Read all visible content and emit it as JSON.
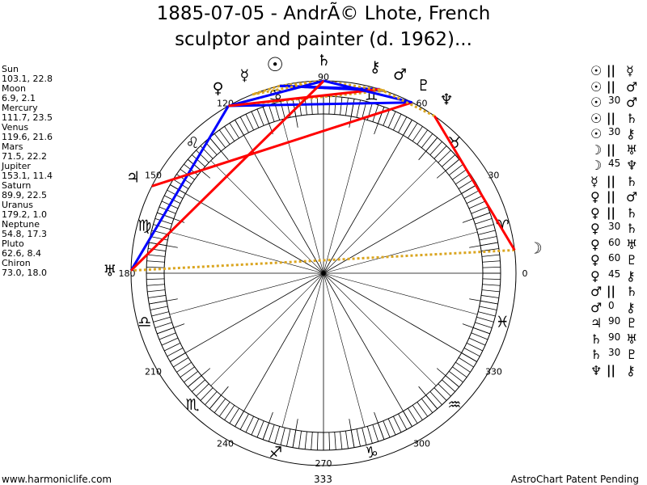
{
  "title_line1": "1885-07-05 - AndrÃ© Lhote, French",
  "title_line2": "sculptor and painter (d. 1962)...",
  "planets": [
    {
      "name": "Sun",
      "glyph": "☉",
      "coords": "103.1, 22.8"
    },
    {
      "name": "Moon",
      "glyph": "☽",
      "coords": "6.9, 2.1"
    },
    {
      "name": "Mercury",
      "glyph": "☿",
      "coords": "111.7, 23.5"
    },
    {
      "name": "Venus",
      "glyph": "♀",
      "coords": "119.6, 21.6"
    },
    {
      "name": "Mars",
      "glyph": "♂",
      "coords": "71.5, 22.2"
    },
    {
      "name": "Jupiter",
      "glyph": "♃",
      "coords": "153.1, 11.4"
    },
    {
      "name": "Saturn",
      "glyph": "♄",
      "coords": "89.9, 22.5"
    },
    {
      "name": "Uranus",
      "glyph": "♅",
      "coords": "179.2, 1.0"
    },
    {
      "name": "Neptune",
      "glyph": "♆",
      "coords": "54.8, 17.3"
    },
    {
      "name": "Pluto",
      "glyph": "♇",
      "coords": "62.6, 8.4"
    },
    {
      "name": "Chiron",
      "glyph": "⚷",
      "coords": "73.0, 18.0"
    }
  ],
  "signs": [
    "♈",
    "♉",
    "♊",
    "♋",
    "♌",
    "♍",
    "♎",
    "♏",
    "♐",
    "♑",
    "♒",
    "♓"
  ],
  "degree_labels": [
    "0",
    "30",
    "60",
    "90",
    "120",
    "150",
    "180",
    "210",
    "240",
    "270",
    "300",
    "330"
  ],
  "aspects": [
    {
      "a": "Sun",
      "type": "||",
      "b": "Mercury"
    },
    {
      "a": "Sun",
      "type": "||",
      "b": "Mars"
    },
    {
      "a": "Sun",
      "type": "30",
      "b": "Mars"
    },
    {
      "a": "Sun",
      "type": "||",
      "b": "Saturn"
    },
    {
      "a": "Sun",
      "type": "30",
      "b": "Chiron"
    },
    {
      "a": "Moon",
      "type": "||",
      "b": "Uranus"
    },
    {
      "a": "Moon",
      "type": "45",
      "b": "Neptune"
    },
    {
      "a": "Mercury",
      "type": "||",
      "b": "Saturn"
    },
    {
      "a": "Venus",
      "type": "||",
      "b": "Mars"
    },
    {
      "a": "Venus",
      "type": "||",
      "b": "Saturn"
    },
    {
      "a": "Venus",
      "type": "30",
      "b": "Saturn"
    },
    {
      "a": "Venus",
      "type": "60",
      "b": "Uranus"
    },
    {
      "a": "Venus",
      "type": "60",
      "b": "Pluto"
    },
    {
      "a": "Venus",
      "type": "45",
      "b": "Chiron"
    },
    {
      "a": "Mars",
      "type": "||",
      "b": "Saturn"
    },
    {
      "a": "Mars",
      "type": "0",
      "b": "Chiron"
    },
    {
      "a": "Jupiter",
      "type": "90",
      "b": "Pluto"
    },
    {
      "a": "Saturn",
      "type": "90",
      "b": "Uranus"
    },
    {
      "a": "Saturn",
      "type": "30",
      "b": "Pluto"
    },
    {
      "a": "Neptune",
      "type": "||",
      "b": "Chiron"
    }
  ],
  "aspect_colors": {
    "30": "#0000ff",
    "60": "#0000ff",
    "45": "#ff0000",
    "90": "#ff0000",
    "||": "#daa520",
    "0": "#daa520"
  },
  "footer": {
    "site": "www.harmoniclife.com",
    "harmonic": "333",
    "patent": "AstroChart Patent Pending"
  }
}
